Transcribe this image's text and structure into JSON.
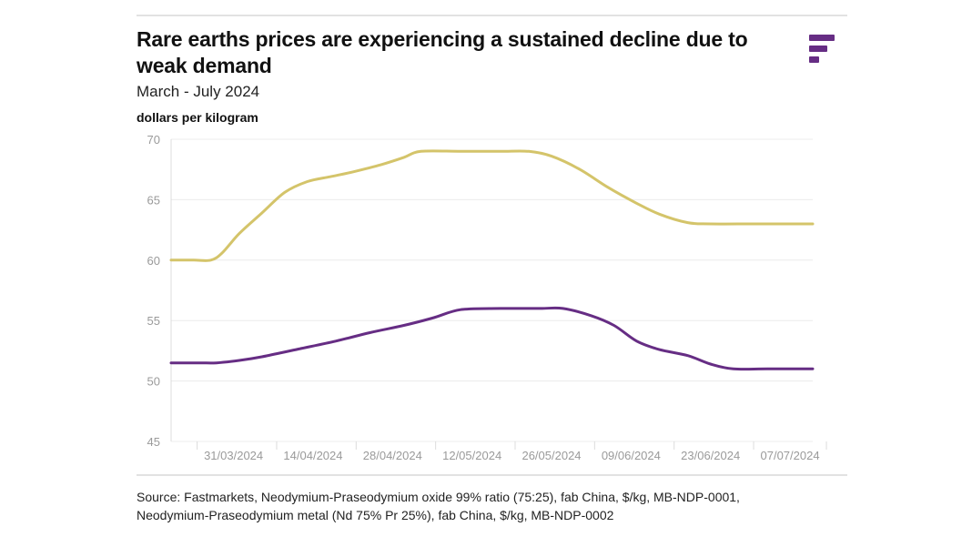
{
  "header": {
    "title": "Rare earths prices are experiencing a sustained decline due to weak demand",
    "subtitle": "March - July 2024",
    "unit": "dollars per kilogram"
  },
  "footer": {
    "source_line1": "Source: Fastmarkets, Neodymium-Praseodymium oxide 99% ratio (75:25), fab China, $/kg, MB-NDP-0001,",
    "source_line2": "Neodymium-Praseodymium metal (Nd 75% Pr 25%), fab China, $/kg, MB-NDP-0002"
  },
  "brand": {
    "logo_icon": "stacked-bars-logo-icon",
    "color": "#662d84"
  },
  "chart_data": {
    "type": "line",
    "ylabel": "dollars per kilogram",
    "ylim": [
      45,
      70
    ],
    "yticks": [
      45,
      50,
      55,
      60,
      65,
      70
    ],
    "xlim": [
      "2024-03-20",
      "2024-07-11"
    ],
    "xticks": [
      "31/03/2024",
      "14/04/2024",
      "28/04/2024",
      "12/05/2024",
      "26/05/2024",
      "09/06/2024",
      "23/06/2024",
      "07/07/2024"
    ],
    "grid": true,
    "series": [
      {
        "color": "#d4c46a",
        "points": [
          [
            "2024-03-20",
            60.0
          ],
          [
            "2024-03-24",
            60.0
          ],
          [
            "2024-03-27",
            60.0
          ],
          [
            "2024-03-29",
            60.6
          ],
          [
            "2024-04-01",
            62.2
          ],
          [
            "2024-04-05",
            63.9
          ],
          [
            "2024-04-09",
            65.6
          ],
          [
            "2024-04-13",
            66.5
          ],
          [
            "2024-04-17",
            66.9
          ],
          [
            "2024-04-21",
            67.3
          ],
          [
            "2024-04-26",
            67.9
          ],
          [
            "2024-04-30",
            68.5
          ],
          [
            "2024-05-03",
            69.0
          ],
          [
            "2024-05-10",
            69.0
          ],
          [
            "2024-05-17",
            69.0
          ],
          [
            "2024-05-22",
            69.0
          ],
          [
            "2024-05-26",
            68.6
          ],
          [
            "2024-05-31",
            67.5
          ],
          [
            "2024-06-05",
            66.0
          ],
          [
            "2024-06-10",
            64.7
          ],
          [
            "2024-06-14",
            63.8
          ],
          [
            "2024-06-19",
            63.1
          ],
          [
            "2024-06-23",
            63.0
          ],
          [
            "2024-07-01",
            63.0
          ],
          [
            "2024-07-11",
            63.0
          ]
        ]
      },
      {
        "color": "#662d84",
        "points": [
          [
            "2024-03-20",
            51.5
          ],
          [
            "2024-03-25",
            51.5
          ],
          [
            "2024-03-28",
            51.5
          ],
          [
            "2024-04-01",
            51.7
          ],
          [
            "2024-04-05",
            52.0
          ],
          [
            "2024-04-11",
            52.6
          ],
          [
            "2024-04-18",
            53.3
          ],
          [
            "2024-04-24",
            54.0
          ],
          [
            "2024-04-30",
            54.6
          ],
          [
            "2024-05-05",
            55.2
          ],
          [
            "2024-05-10",
            55.9
          ],
          [
            "2024-05-17",
            56.0
          ],
          [
            "2024-05-24",
            56.0
          ],
          [
            "2024-05-28",
            56.0
          ],
          [
            "2024-06-02",
            55.4
          ],
          [
            "2024-06-06",
            54.6
          ],
          [
            "2024-06-10",
            53.3
          ],
          [
            "2024-06-14",
            52.6
          ],
          [
            "2024-06-19",
            52.1
          ],
          [
            "2024-06-23",
            51.4
          ],
          [
            "2024-06-27",
            51.0
          ],
          [
            "2024-07-03",
            51.0
          ],
          [
            "2024-07-11",
            51.0
          ]
        ]
      }
    ]
  }
}
